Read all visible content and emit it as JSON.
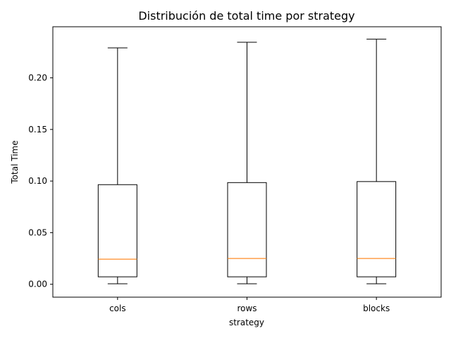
{
  "chart_data": {
    "type": "box",
    "title": "Distribución de total time por strategy",
    "xlabel": "strategy",
    "ylabel": "Total Time",
    "ylim": [
      -0.0125,
      0.2495
    ],
    "yticks": [
      "0.00",
      "0.05",
      "0.10",
      "0.15",
      "0.20"
    ],
    "ytick_values": [
      0.0,
      0.05,
      0.1,
      0.15,
      0.2
    ],
    "categories": [
      "cols",
      "rows",
      "blocks"
    ],
    "boxes": [
      {
        "category": "cols",
        "whisker_low": 0.0005,
        "q1": 0.0072,
        "median": 0.0243,
        "q3": 0.0965,
        "whisker_high": 0.229
      },
      {
        "category": "rows",
        "whisker_low": 0.0005,
        "q1": 0.0072,
        "median": 0.025,
        "q3": 0.0985,
        "whisker_high": 0.2345
      },
      {
        "category": "blocks",
        "whisker_low": 0.0005,
        "q1": 0.0072,
        "median": 0.025,
        "q3": 0.0995,
        "whisker_high": 0.2375
      }
    ],
    "grid": false,
    "colors": {
      "box": "#000000",
      "median": "#ff7f0e"
    }
  }
}
